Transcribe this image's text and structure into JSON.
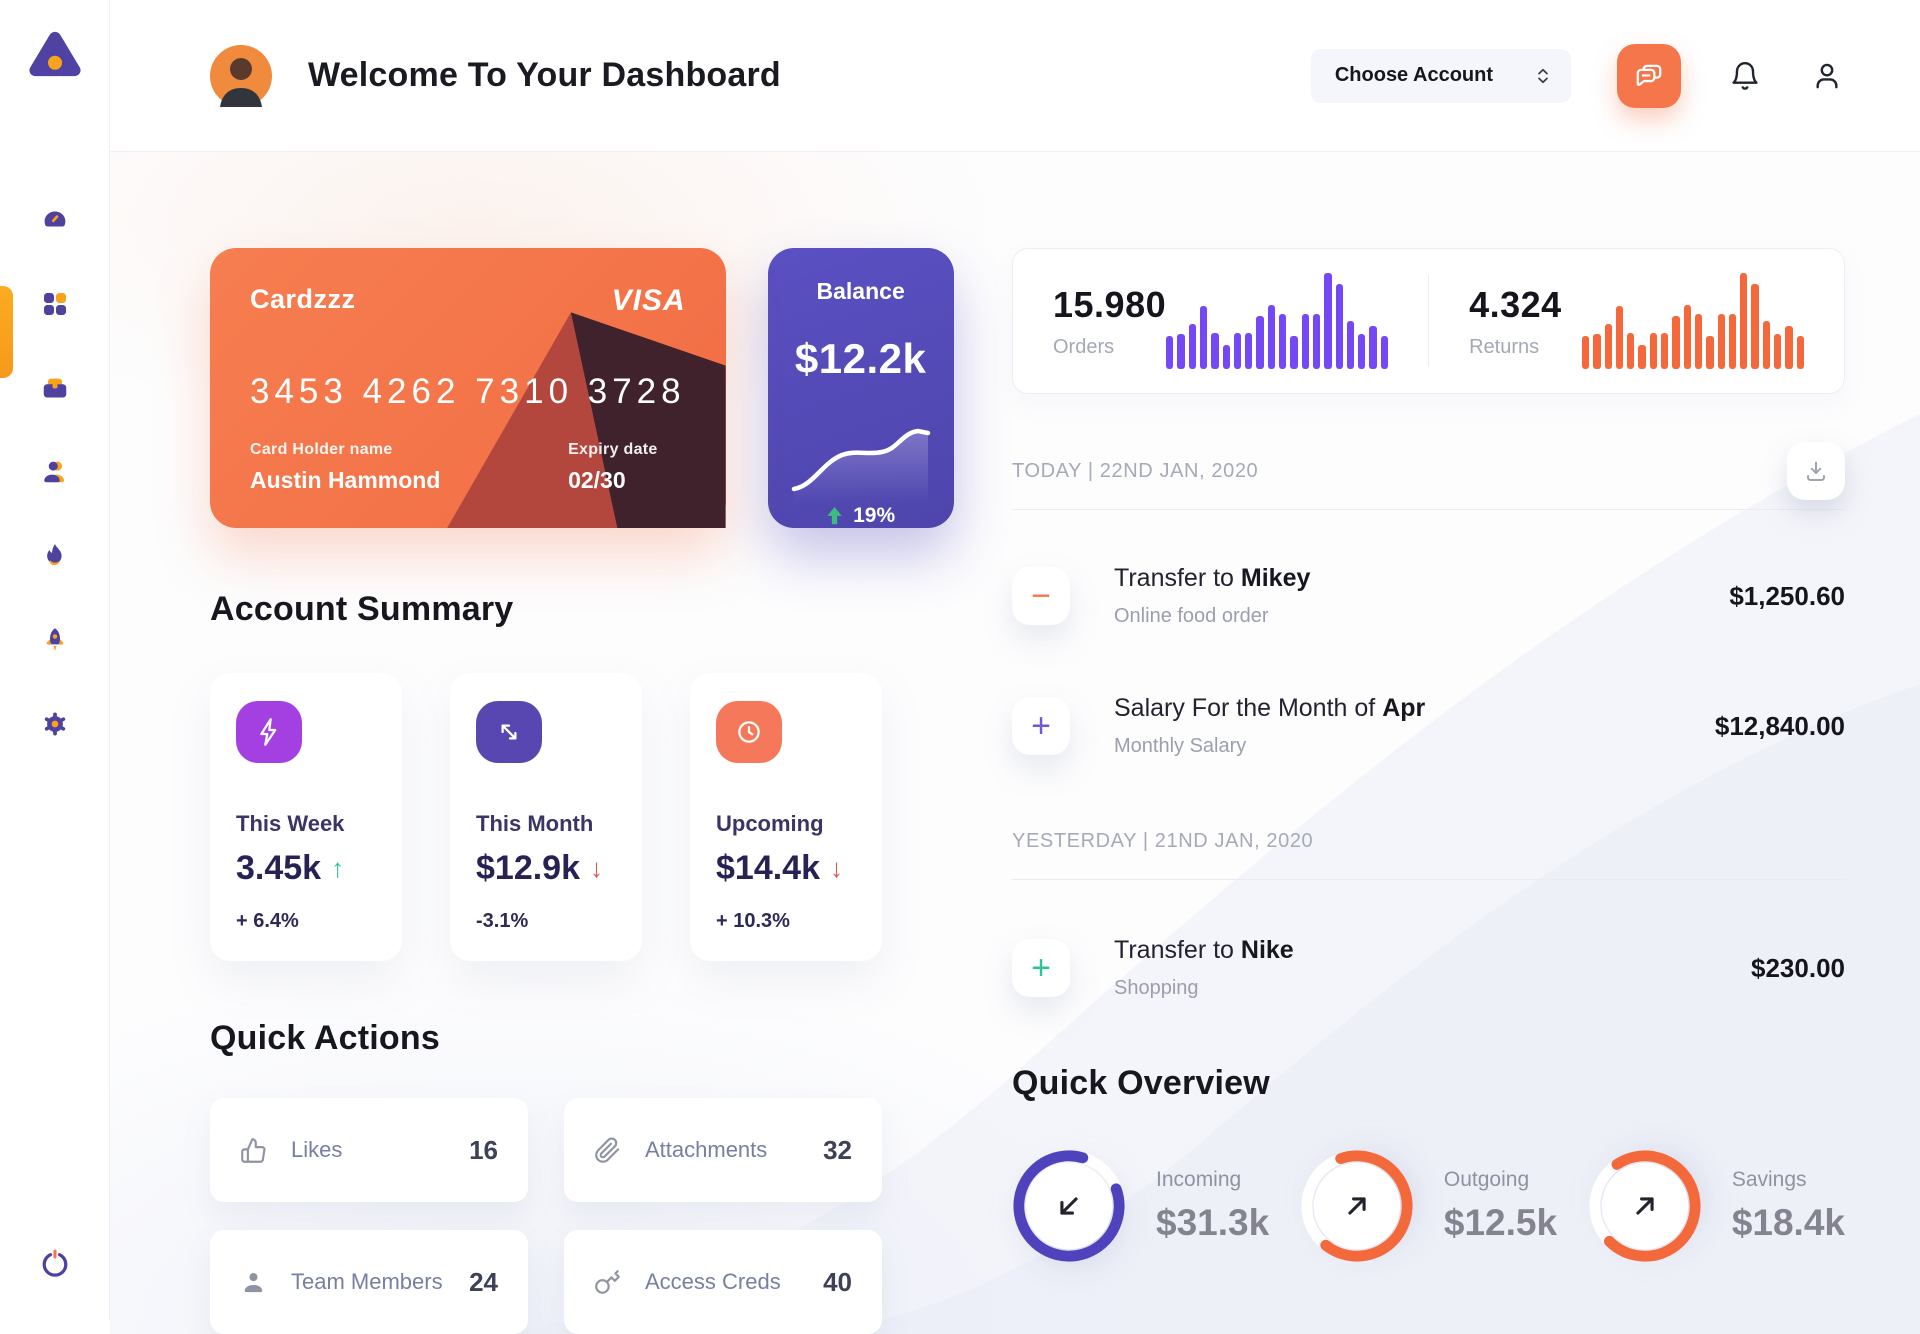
{
  "colors": {
    "accent_orange": "#F4764A",
    "amber": "#F9A21C",
    "indigo": "#4E429E",
    "chart_purple": "#7448F5",
    "chart_orange": "#F4683C",
    "balance_purple": "#544AB8",
    "green": "#2FC29B",
    "red": "#E2574C"
  },
  "header": {
    "title": "Welcome To Your Dashboard",
    "account_select_label": "Choose Account"
  },
  "credit_card": {
    "name": "Cardzzz",
    "brand": "VISA",
    "number": "3453 4262 7310 3728",
    "holder_label": "Card Holder name",
    "holder_name": "Austin Hammond",
    "expiry_label": "Expiry date",
    "expiry": "02/30"
  },
  "balance_card": {
    "label": "Balance",
    "value": "$12.2k",
    "change": "19%"
  },
  "stats_panel": {
    "orders": {
      "value": "15.980",
      "label": "Orders",
      "bars": [
        34,
        36,
        47,
        66,
        38,
        25,
        38,
        38,
        55,
        67,
        57,
        34,
        57,
        57,
        100,
        89,
        50,
        36,
        45,
        34
      ]
    },
    "returns": {
      "value": "4.324",
      "label": "Returns",
      "bars": [
        34,
        36,
        47,
        66,
        38,
        25,
        38,
        38,
        55,
        67,
        57,
        34,
        57,
        57,
        100,
        89,
        50,
        36,
        45,
        34
      ]
    }
  },
  "account_summary": {
    "title": "Account Summary",
    "cards": [
      {
        "label": "This Week",
        "value": "3.45k",
        "arrow": "↑",
        "arrow_color": "#2FC29B",
        "delta": "+ 6.4%",
        "icon": "lightning",
        "icon_bg": "#A43FE1"
      },
      {
        "label": "This Month",
        "value": "$12.9k",
        "arrow": "↓",
        "arrow_color": "#E2574C",
        "delta": "-3.1%",
        "icon": "trend-arrow",
        "icon_bg": "#5847B0"
      },
      {
        "label": "Upcoming",
        "value": "$14.4k",
        "arrow": "↓",
        "arrow_color": "#E2574C",
        "delta": "+ 10.3%",
        "icon": "clock",
        "icon_bg": "#F5785A"
      }
    ]
  },
  "quick_actions": {
    "title": "Quick Actions",
    "items": [
      {
        "icon": "clap",
        "label": "Likes",
        "value": "16"
      },
      {
        "icon": "paperclip",
        "label": "Attachments",
        "value": "32"
      },
      {
        "icon": "member",
        "label": "Team Members",
        "value": "24"
      },
      {
        "icon": "key",
        "label": "Access Creds",
        "value": "40"
      }
    ]
  },
  "transactions": {
    "groups": [
      {
        "date_label": "TODAY | 22ND JAN, 2020",
        "items": [
          {
            "glyph": "−",
            "glyph_color": "#F4764A",
            "title_prefix": "Transfer to ",
            "title_bold": "Mikey",
            "subtitle": "Online food order",
            "amount": "$1,250.60"
          },
          {
            "glyph": "+",
            "glyph_color": "#6C5BD4",
            "title_prefix": "Salary For the Month of ",
            "title_bold": "Apr",
            "subtitle": "Monthly Salary",
            "amount": "$12,840.00"
          }
        ]
      },
      {
        "date_label": "YESTERDAY | 21ND JAN, 2020",
        "items": [
          {
            "glyph": "+",
            "glyph_color": "#2FC29B",
            "title_prefix": "Transfer to ",
            "title_bold": "Nike",
            "subtitle": "Shopping",
            "amount": "$230.00"
          }
        ]
      }
    ]
  },
  "quick_overview": {
    "title": "Quick Overview",
    "items": [
      {
        "label": "Incoming",
        "value": "$31.3k",
        "percent": 85,
        "ring_color": "#4F43BD",
        "arrow": "down-left"
      },
      {
        "label": "Outgoing",
        "value": "$12.5k",
        "percent": 66,
        "ring_color": "#F4693B",
        "arrow": "up-right"
      },
      {
        "label": "Savings",
        "value": "$18.4k",
        "percent": 72,
        "ring_color": "#F4693B",
        "arrow": "up-right"
      }
    ]
  }
}
